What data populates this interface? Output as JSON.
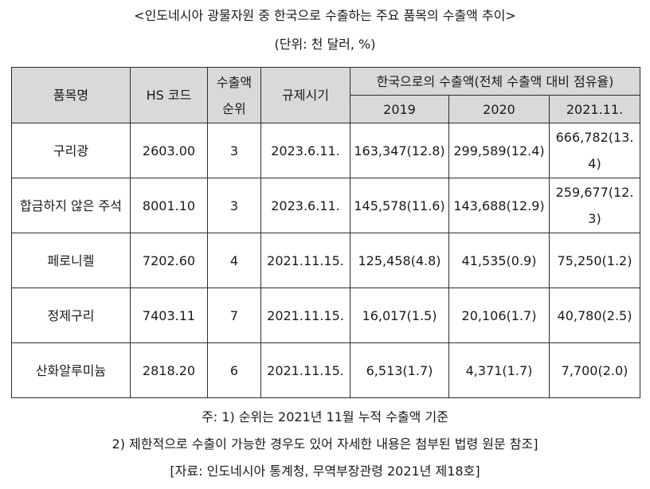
{
  "title": "<인도네시아 광물자원 중 한국으로 수출하는 주요 품목의 수출액 추이>",
  "unit": "(단위: 천 달러, %)",
  "headers": {
    "item": "품목명",
    "hs_code": "HS 코드",
    "rank": "수출액 순위",
    "regulation": "규제시기",
    "export_to_korea": "한국으로의 수출액(전체 수출액 대비 점유율)",
    "years": [
      "2019",
      "2020",
      "2021.11."
    ]
  },
  "rows": [
    {
      "item": "구리광",
      "hs_code": "2603.00",
      "rank": "3",
      "regulation": "2023.6.11.",
      "y2019": "163,347(12.8)",
      "y2020": "299,589(12.4)",
      "y2021": "666,782(13.4)"
    },
    {
      "item": "합금하지 않은 주석",
      "hs_code": "8001.10",
      "rank": "3",
      "regulation": "2023.6.11.",
      "y2019": "145,578(11.6)",
      "y2020": "143,688(12.9)",
      "y2021": "259,677(12.3)"
    },
    {
      "item": "페로니켈",
      "hs_code": "7202.60",
      "rank": "4",
      "regulation": "2021.11.15.",
      "y2019": "125,458(4.8)",
      "y2020": "41,535(0.9)",
      "y2021": "75,250(1.2)"
    },
    {
      "item": "정제구리",
      "hs_code": "7403.11",
      "rank": "7",
      "regulation": "2021.11.15.",
      "y2019": "16,017(1.5)",
      "y2020": "20,106(1.7)",
      "y2021": "40,780(2.5)"
    },
    {
      "item": "산화알루미늄",
      "hs_code": "2818.20",
      "rank": "6",
      "regulation": "2021.11.15.",
      "y2019": "6,513(1.7)",
      "y2020": "4,371(1.7)",
      "y2021": "7,700(2.0)"
    }
  ],
  "notes": [
    "주: 1) 순위는 2021년 11월 누적 수출액 기준",
    "2) 제한적으로 수출이 가능한 경우도 있어 자세한 내용은 첨부된 법령 원문 참조]"
  ],
  "source": "[자료: 인도네시아 통계청, 무역부장관령 2021년 제18호]"
}
